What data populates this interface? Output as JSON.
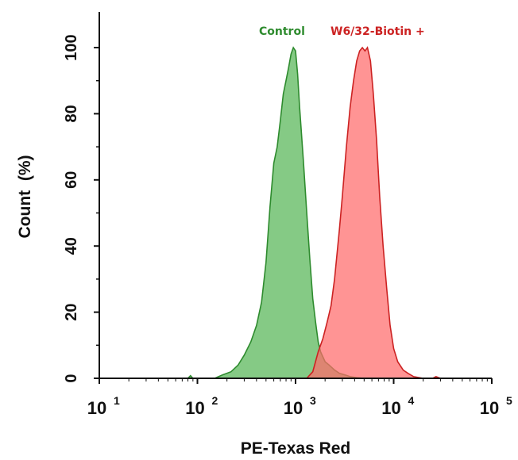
{
  "chart_data": {
    "type": "area",
    "xlabel": "PE-Texas Red",
    "ylabel": "Count  (%)",
    "xscale": "log",
    "xlim": [
      10,
      100000
    ],
    "ylim": [
      0,
      110
    ],
    "grid": false,
    "legend": "top",
    "x_ticks": [
      10,
      100,
      1000,
      10000,
      100000
    ],
    "x_tick_labels": [
      {
        "base": "10",
        "exp": "1"
      },
      {
        "base": "10",
        "exp": "2"
      },
      {
        "base": "10",
        "exp": "3"
      },
      {
        "base": "10",
        "exp": "4"
      },
      {
        "base": "10",
        "exp": "5"
      }
    ],
    "y_ticks": [
      0,
      20,
      40,
      60,
      80,
      100
    ],
    "y_tick_labels": [
      "0",
      "20",
      "40",
      "60",
      "80",
      "100"
    ],
    "series": [
      {
        "name": "Control",
        "color": "#2e8b2e",
        "fill": "#5cb85c",
        "x": [
          80,
          85,
          90,
          150,
          180,
          220,
          260,
          300,
          350,
          400,
          450,
          500,
          550,
          600,
          650,
          700,
          750,
          800,
          850,
          900,
          950,
          1000,
          1050,
          1100,
          1200,
          1300,
          1400,
          1500,
          1600,
          1700,
          1800,
          2000,
          2200,
          2500,
          2800,
          3200,
          3600,
          4200,
          5000
        ],
        "y": [
          0,
          0.8,
          0,
          0,
          1,
          2,
          4,
          7,
          11,
          16,
          23,
          35,
          52,
          65,
          70,
          78,
          86,
          90,
          94,
          98,
          100,
          99,
          92,
          82,
          66,
          50,
          36,
          24,
          17,
          11,
          8,
          5,
          4,
          2.5,
          1.5,
          1,
          0.5,
          0.2,
          0
        ]
      },
      {
        "name": "W6/32-Biotin +",
        "color": "#cc2222",
        "fill": "#ff6b6b",
        "x": [
          1300,
          1500,
          1700,
          1900,
          2100,
          2300,
          2500,
          2800,
          3000,
          3300,
          3600,
          3900,
          4200,
          4500,
          4800,
          5100,
          5400,
          5800,
          6200,
          6700,
          7200,
          7800,
          8500,
          9200,
          10000,
          11000,
          12500,
          14000,
          16000,
          20000,
          25000,
          27000,
          30000
        ],
        "y": [
          0,
          2,
          8,
          12,
          17,
          22,
          30,
          45,
          55,
          70,
          82,
          90,
          96,
          99,
          100,
          99,
          100,
          96,
          86,
          72,
          55,
          40,
          27,
          16,
          9,
          5,
          2.5,
          1.5,
          0.5,
          0,
          0,
          0.5,
          0
        ]
      }
    ]
  }
}
